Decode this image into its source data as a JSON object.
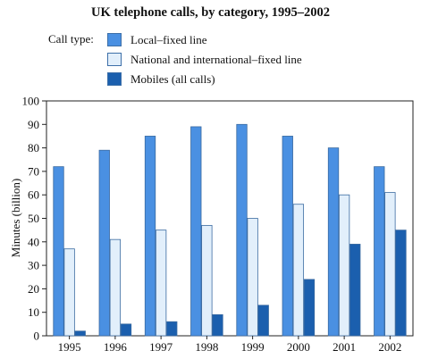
{
  "chart_data": {
    "type": "bar",
    "title": "UK telephone calls, by category, 1995–2002",
    "legend_caption": "Call type:",
    "xlabel": "",
    "ylabel": "Minutes (billion)",
    "ylim": [
      0,
      100
    ],
    "yticks": [
      "0",
      "10",
      "20",
      "30",
      "40",
      "50",
      "60",
      "70",
      "80",
      "90",
      "100"
    ],
    "categories": [
      "1995",
      "1996",
      "1997",
      "1998",
      "1999",
      "2000",
      "2001",
      "2002"
    ],
    "legend_position": "top",
    "grid": false,
    "series": [
      {
        "name": "Local–fixed line",
        "color": "#4a90e2",
        "values": [
          72,
          79,
          85,
          89,
          90,
          85,
          80,
          72
        ]
      },
      {
        "name": "National and international–fixed line",
        "color": "#e2effb",
        "values": [
          37,
          41,
          45,
          47,
          50,
          56,
          60,
          61
        ]
      },
      {
        "name": "Mobiles (all calls)",
        "color": "#1b5fae",
        "values": [
          2,
          5,
          6,
          9,
          13,
          24,
          39,
          45
        ]
      }
    ]
  }
}
